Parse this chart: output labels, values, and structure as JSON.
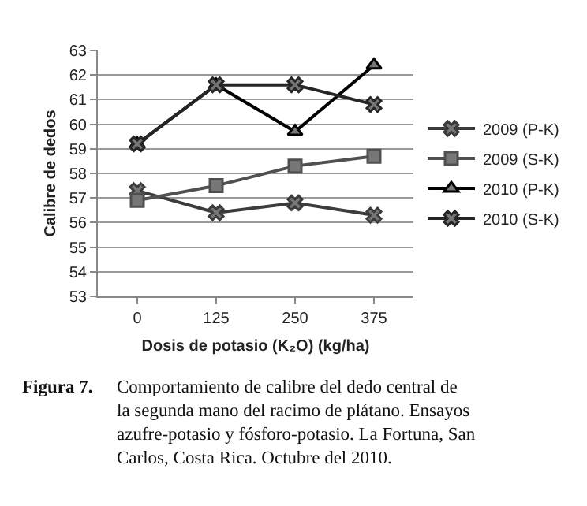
{
  "chart_data": {
    "type": "line",
    "xlabel": "Dosis de potasio (K₂O) (kg/ha)",
    "ylabel": "Calibre de dedos",
    "categories": [
      "0",
      "125",
      "250",
      "375"
    ],
    "series": [
      {
        "name": "2009 (P-K)",
        "color": "#3c3c3c",
        "marker": "cross",
        "values": [
          57.3,
          56.4,
          56.8,
          56.3
        ]
      },
      {
        "name": "2009 (S-K)",
        "color": "#505050",
        "marker": "square",
        "values": [
          56.9,
          57.5,
          58.3,
          58.7
        ]
      },
      {
        "name": "2010 (P-K)",
        "color": "#000000",
        "marker": "triangle",
        "values": [
          59.2,
          61.6,
          59.7,
          62.4
        ]
      },
      {
        "name": "2010 (S-K)",
        "color": "#262626",
        "marker": "cross",
        "values": [
          59.2,
          61.6,
          61.6,
          60.8
        ]
      }
    ],
    "ylim": [
      53,
      63
    ],
    "yticks": [
      53,
      54,
      55,
      56,
      57,
      58,
      59,
      60,
      61,
      62,
      63
    ],
    "grid": "y",
    "legend": "right",
    "annotations": [
      "Figura 7.",
      "Comportamiento de calibre del dedo central de\nla segunda mano del racimo de plátano. Ensayos\nazufre-potasio y fósforo-potasio. La Fortuna, San\nCarlos, Costa Rica. Octubre del 2010."
    ]
  }
}
